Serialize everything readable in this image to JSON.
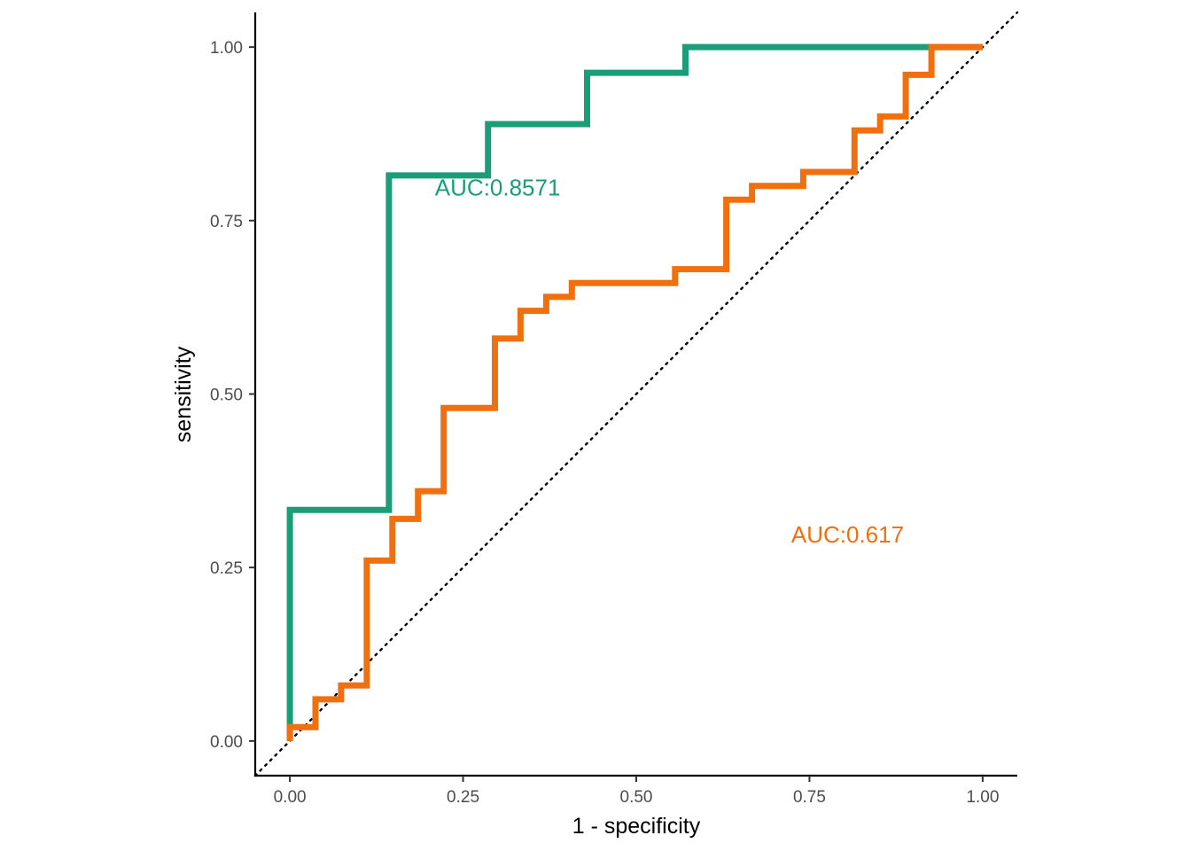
{
  "chart_data": {
    "type": "line",
    "title": "",
    "xlabel": "1 - specificity",
    "ylabel": "sensitivity",
    "xlim": [
      -0.05,
      1.05
    ],
    "ylim": [
      -0.05,
      1.05
    ],
    "x_ticks": [
      "0.00",
      "0.25",
      "0.50",
      "0.75",
      "1.00"
    ],
    "y_ticks": [
      "0.00",
      "0.25",
      "0.50",
      "0.75",
      "1.00"
    ],
    "x_tick_values": [
      0,
      0.25,
      0.5,
      0.75,
      1
    ],
    "y_tick_values": [
      0,
      0.25,
      0.5,
      0.75,
      1
    ],
    "grid": false,
    "reference_line": {
      "style": "dotted",
      "from": [
        -0.05,
        -0.05
      ],
      "to": [
        1.05,
        1.05
      ]
    },
    "series": [
      {
        "color": "#1b9e77",
        "step": true,
        "points": [
          [
            0,
            0
          ],
          [
            0,
            0.333
          ],
          [
            0.143,
            0.333
          ],
          [
            0.143,
            0.815
          ],
          [
            0.286,
            0.815
          ],
          [
            0.286,
            0.889
          ],
          [
            0.429,
            0.889
          ],
          [
            0.429,
            0.963
          ],
          [
            0.571,
            0.963
          ],
          [
            0.571,
            1.0
          ],
          [
            1.0,
            1.0
          ]
        ],
        "annotation": {
          "text": "AUC:0.8571",
          "x": 0.3,
          "y": 0.795
        }
      },
      {
        "color": "#f07010",
        "step": true,
        "points": [
          [
            0,
            0
          ],
          [
            0,
            0.02
          ],
          [
            0.037,
            0.02
          ],
          [
            0.037,
            0.06
          ],
          [
            0.074,
            0.06
          ],
          [
            0.074,
            0.08
          ],
          [
            0.111,
            0.08
          ],
          [
            0.111,
            0.26
          ],
          [
            0.148,
            0.26
          ],
          [
            0.148,
            0.32
          ],
          [
            0.185,
            0.32
          ],
          [
            0.185,
            0.36
          ],
          [
            0.222,
            0.36
          ],
          [
            0.222,
            0.48
          ],
          [
            0.296,
            0.48
          ],
          [
            0.296,
            0.58
          ],
          [
            0.333,
            0.58
          ],
          [
            0.333,
            0.62
          ],
          [
            0.37,
            0.62
          ],
          [
            0.37,
            0.64
          ],
          [
            0.407,
            0.64
          ],
          [
            0.407,
            0.66
          ],
          [
            0.556,
            0.66
          ],
          [
            0.556,
            0.68
          ],
          [
            0.63,
            0.68
          ],
          [
            0.63,
            0.78
          ],
          [
            0.667,
            0.78
          ],
          [
            0.667,
            0.8
          ],
          [
            0.741,
            0.8
          ],
          [
            0.741,
            0.82
          ],
          [
            0.815,
            0.82
          ],
          [
            0.815,
            0.88
          ],
          [
            0.852,
            0.88
          ],
          [
            0.852,
            0.9
          ],
          [
            0.889,
            0.9
          ],
          [
            0.889,
            0.96
          ],
          [
            0.926,
            0.96
          ],
          [
            0.926,
            1.0
          ],
          [
            1.0,
            1.0
          ]
        ],
        "annotation": {
          "text": "AUC:0.617",
          "x": 0.805,
          "y": 0.295
        }
      }
    ]
  }
}
